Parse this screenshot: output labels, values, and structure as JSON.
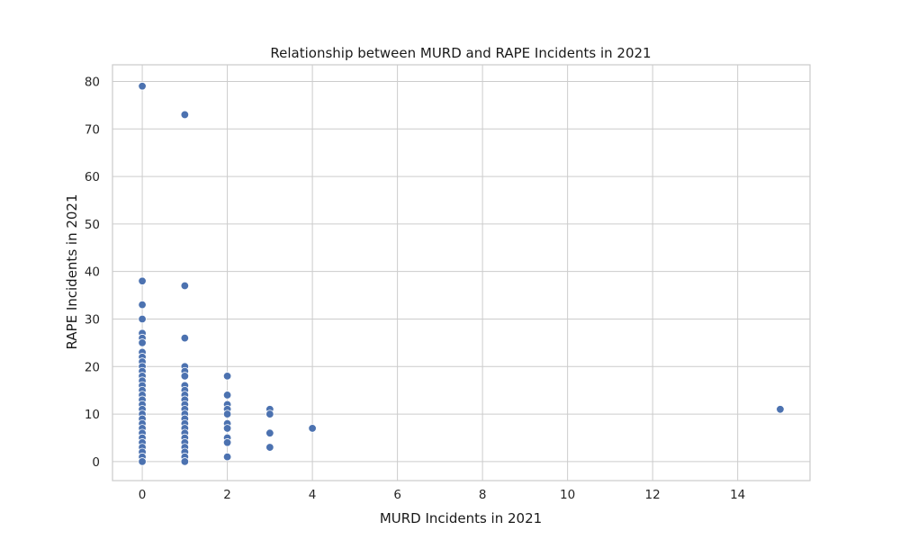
{
  "chart_data": {
    "type": "scatter",
    "title": "Relationship between MURD and RAPE Incidents in 2021",
    "xlabel": "MURD Incidents in 2021",
    "ylabel": "RAPE Incidents in 2021",
    "xlim": [
      -0.7,
      15.7
    ],
    "ylim": [
      -4,
      83.5
    ],
    "xticks": [
      0,
      2,
      4,
      6,
      8,
      10,
      12,
      14
    ],
    "yticks": [
      0,
      10,
      20,
      30,
      40,
      50,
      60,
      70,
      80
    ],
    "grid": true,
    "marker_color": "#4c72b0",
    "points": [
      [
        0,
        79
      ],
      [
        0,
        38
      ],
      [
        0,
        33
      ],
      [
        0,
        30
      ],
      [
        0,
        27
      ],
      [
        0,
        26
      ],
      [
        0,
        25
      ],
      [
        0,
        23
      ],
      [
        0,
        22
      ],
      [
        0,
        21
      ],
      [
        0,
        20
      ],
      [
        0,
        19
      ],
      [
        0,
        18
      ],
      [
        0,
        17
      ],
      [
        0,
        16
      ],
      [
        0,
        15
      ],
      [
        0,
        14
      ],
      [
        0,
        13
      ],
      [
        0,
        12
      ],
      [
        0,
        11
      ],
      [
        0,
        10
      ],
      [
        0,
        9
      ],
      [
        0,
        8
      ],
      [
        0,
        7
      ],
      [
        0,
        6
      ],
      [
        0,
        5
      ],
      [
        0,
        4
      ],
      [
        0,
        3
      ],
      [
        0,
        2
      ],
      [
        0,
        1
      ],
      [
        0,
        0
      ],
      [
        1,
        73
      ],
      [
        1,
        37
      ],
      [
        1,
        26
      ],
      [
        1,
        20
      ],
      [
        1,
        19
      ],
      [
        1,
        18
      ],
      [
        1,
        16
      ],
      [
        1,
        15
      ],
      [
        1,
        14
      ],
      [
        1,
        13
      ],
      [
        1,
        12
      ],
      [
        1,
        11
      ],
      [
        1,
        10
      ],
      [
        1,
        9
      ],
      [
        1,
        8
      ],
      [
        1,
        7
      ],
      [
        1,
        6
      ],
      [
        1,
        5
      ],
      [
        1,
        4
      ],
      [
        1,
        3
      ],
      [
        1,
        2
      ],
      [
        1,
        1
      ],
      [
        1,
        0
      ],
      [
        2,
        18
      ],
      [
        2,
        14
      ],
      [
        2,
        12
      ],
      [
        2,
        11
      ],
      [
        2,
        10
      ],
      [
        2,
        8
      ],
      [
        2,
        7
      ],
      [
        2,
        5
      ],
      [
        2,
        4
      ],
      [
        2,
        1
      ],
      [
        3,
        11
      ],
      [
        3,
        10
      ],
      [
        3,
        6
      ],
      [
        3,
        3
      ],
      [
        4,
        7
      ],
      [
        15,
        11
      ]
    ]
  }
}
